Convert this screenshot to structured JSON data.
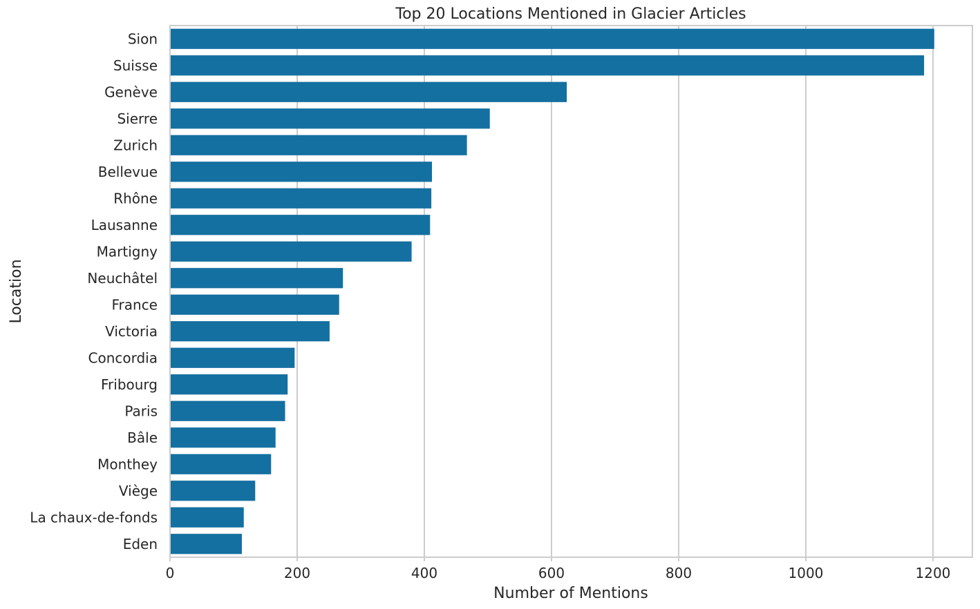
{
  "chart_data": {
    "type": "bar",
    "orientation": "horizontal",
    "title": "Top 20 Locations Mentioned in Glacier Articles",
    "xlabel": "Number of Mentions",
    "ylabel": "Location",
    "xlim": [
      0,
      1262
    ],
    "xticks": [
      0,
      200,
      400,
      600,
      800,
      1000,
      1200
    ],
    "grid": "vertical",
    "bar_color": "#1470a0",
    "categories": [
      "Sion",
      "Suisse",
      "Genève",
      "Sierre",
      "Zurich",
      "Bellevue",
      "Rhône",
      "Lausanne",
      "Martigny",
      "Neuchâtel",
      "France",
      "Victoria",
      "Concordia",
      "Fribourg",
      "Paris",
      "Bâle",
      "Monthey",
      "Viège",
      "La chaux-de-fonds",
      "Eden"
    ],
    "values": [
      1202,
      1186,
      624,
      503,
      467,
      412,
      411,
      409,
      380,
      272,
      266,
      251,
      196,
      185,
      181,
      166,
      159,
      134,
      116,
      113
    ]
  }
}
